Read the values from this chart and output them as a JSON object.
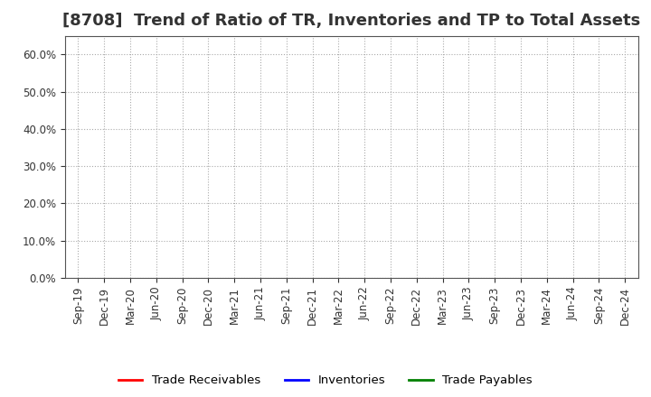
{
  "title": "[8708]  Trend of Ratio of TR, Inventories and TP to Total Assets",
  "x_labels": [
    "Sep-19",
    "Dec-19",
    "Mar-20",
    "Jun-20",
    "Sep-20",
    "Dec-20",
    "Mar-21",
    "Jun-21",
    "Sep-21",
    "Dec-21",
    "Mar-22",
    "Jun-22",
    "Sep-22",
    "Dec-22",
    "Mar-23",
    "Jun-23",
    "Sep-23",
    "Dec-23",
    "Mar-24",
    "Jun-24",
    "Sep-24",
    "Dec-24"
  ],
  "ylim": [
    0.0,
    0.65
  ],
  "yticks": [
    0.0,
    0.1,
    0.2,
    0.3,
    0.4,
    0.5,
    0.6
  ],
  "series": [
    {
      "label": "Trade Receivables",
      "color": "#ff0000",
      "values": [
        null,
        null,
        null,
        null,
        null,
        null,
        null,
        null,
        null,
        null,
        null,
        null,
        null,
        null,
        null,
        null,
        null,
        null,
        null,
        null,
        null,
        null
      ]
    },
    {
      "label": "Inventories",
      "color": "#0000ff",
      "values": [
        null,
        null,
        null,
        null,
        null,
        null,
        null,
        null,
        null,
        null,
        null,
        null,
        null,
        null,
        null,
        null,
        null,
        null,
        null,
        null,
        null,
        null
      ]
    },
    {
      "label": "Trade Payables",
      "color": "#008000",
      "values": [
        null,
        null,
        null,
        null,
        null,
        null,
        null,
        null,
        null,
        null,
        null,
        null,
        null,
        null,
        null,
        null,
        null,
        null,
        null,
        null,
        null,
        null
      ]
    }
  ],
  "background_color": "#ffffff",
  "plot_bg_color": "#ffffff",
  "grid_color": "#aaaaaa",
  "title_fontsize": 13,
  "title_color": "#333333",
  "tick_fontsize": 8.5,
  "legend_fontsize": 9.5,
  "legend_ncol": 3
}
